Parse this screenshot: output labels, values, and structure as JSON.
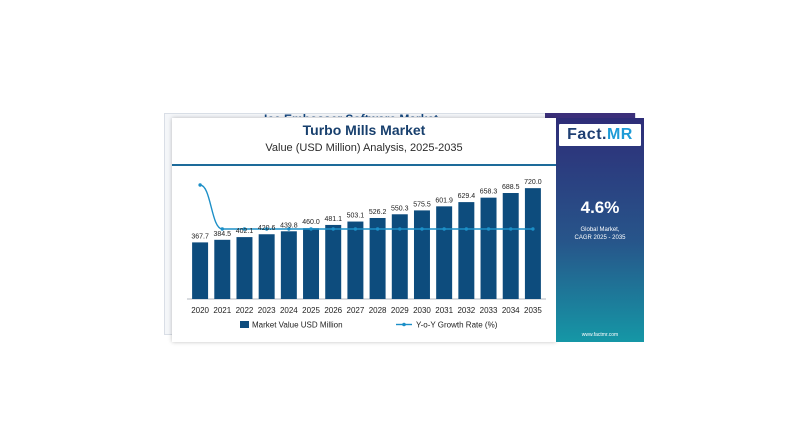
{
  "background_card": {
    "title": "Ice Embosser Software Market"
  },
  "header": {
    "title": "Turbo Mills Market",
    "subtitle": "Value (USD Million) Analysis, 2025-2035"
  },
  "side_panel": {
    "logo_prefix": "Fact.",
    "logo_suffix": "MR",
    "cagr": "4.6%",
    "cagr_label_line1": "Global Market,",
    "cagr_label_line2": "CAGR 2025 - 2035",
    "website": "www.factmr.com"
  },
  "colors": {
    "bar": "#0d4c7d",
    "line": "#1c8fc7",
    "title": "#173f6d"
  },
  "chart_data": {
    "type": "bar",
    "title": "Turbo Mills Market",
    "subtitle": "Value (USD Million) Analysis, 2025-2035",
    "categories": [
      "2020",
      "2021",
      "2022",
      "2023",
      "2024",
      "2025",
      "2026",
      "2027",
      "2028",
      "2029",
      "2030",
      "2031",
      "2032",
      "2033",
      "2034",
      "2035"
    ],
    "series": [
      {
        "name": "Market Value USD Million",
        "type": "bar",
        "values": [
          367.7,
          384.5,
          402.1,
          420.6,
          439.8,
          460.0,
          481.1,
          503.1,
          526.2,
          550.3,
          575.5,
          601.9,
          629.4,
          658.3,
          688.5,
          720.0
        ],
        "labels": [
          "367.7",
          "384.5",
          "402.1",
          "420.6",
          "439.8",
          "460.0",
          "481.1",
          "503.1",
          "526.2",
          "550.3",
          "575.5",
          "601.9",
          "629.4",
          "658.3",
          "688.5",
          "720.0"
        ]
      },
      {
        "name": "Y-o-Y Growth Rate (%)",
        "type": "line",
        "values": [
          6.2,
          4.6,
          4.6,
          4.6,
          4.6,
          4.6,
          4.6,
          4.6,
          4.6,
          4.6,
          4.6,
          4.6,
          4.6,
          4.6,
          4.6,
          4.6
        ]
      }
    ],
    "bar_ylim": [
      0,
      760
    ],
    "legend_position": "bottom",
    "grid": false
  }
}
